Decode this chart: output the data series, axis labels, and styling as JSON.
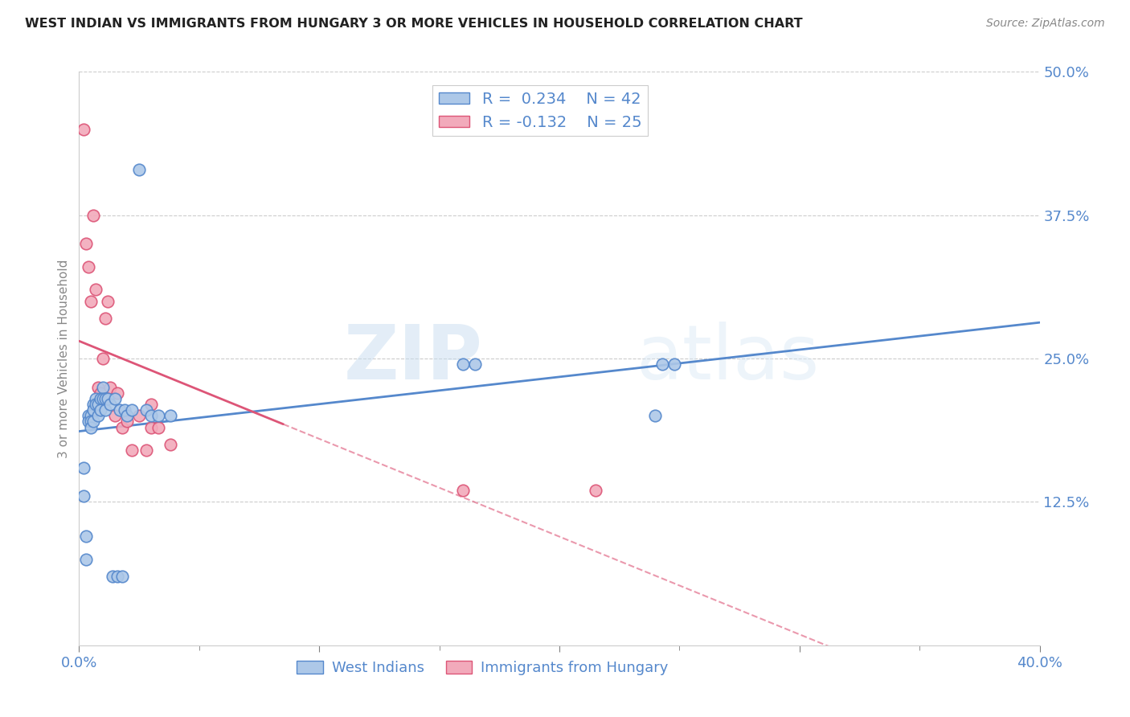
{
  "title": "WEST INDIAN VS IMMIGRANTS FROM HUNGARY 3 OR MORE VEHICLES IN HOUSEHOLD CORRELATION CHART",
  "source": "Source: ZipAtlas.com",
  "xlabel_blue": "West Indians",
  "xlabel_pink": "Immigrants from Hungary",
  "ylabel": "3 or more Vehicles in Household",
  "x_min": 0.0,
  "x_max": 0.4,
  "y_min": 0.0,
  "y_max": 0.5,
  "y_ticks_right": [
    0.125,
    0.25,
    0.375,
    0.5
  ],
  "y_tick_labels_right": [
    "12.5%",
    "25.0%",
    "37.5%",
    "50.0%"
  ],
  "legend_blue_R": "0.234",
  "legend_blue_N": "42",
  "legend_pink_R": "-0.132",
  "legend_pink_N": "25",
  "blue_color": "#adc8e8",
  "pink_color": "#f2aabb",
  "blue_line_color": "#5588cc",
  "pink_line_color": "#dd5577",
  "blue_x": [
    0.002,
    0.002,
    0.003,
    0.003,
    0.004,
    0.004,
    0.005,
    0.005,
    0.005,
    0.006,
    0.006,
    0.006,
    0.007,
    0.007,
    0.008,
    0.008,
    0.009,
    0.009,
    0.01,
    0.01,
    0.011,
    0.011,
    0.012,
    0.013,
    0.014,
    0.015,
    0.016,
    0.017,
    0.018,
    0.019,
    0.02,
    0.022,
    0.025,
    0.028,
    0.03,
    0.033,
    0.038,
    0.16,
    0.165,
    0.24,
    0.243,
    0.248
  ],
  "blue_y": [
    0.155,
    0.13,
    0.095,
    0.075,
    0.2,
    0.195,
    0.2,
    0.195,
    0.19,
    0.21,
    0.205,
    0.195,
    0.215,
    0.21,
    0.21,
    0.2,
    0.215,
    0.205,
    0.225,
    0.215,
    0.215,
    0.205,
    0.215,
    0.21,
    0.06,
    0.215,
    0.06,
    0.205,
    0.06,
    0.205,
    0.2,
    0.205,
    0.415,
    0.205,
    0.2,
    0.2,
    0.2,
    0.245,
    0.245,
    0.2,
    0.245,
    0.245
  ],
  "pink_x": [
    0.002,
    0.003,
    0.004,
    0.005,
    0.006,
    0.007,
    0.008,
    0.009,
    0.01,
    0.011,
    0.012,
    0.013,
    0.015,
    0.016,
    0.018,
    0.02,
    0.022,
    0.025,
    0.028,
    0.03,
    0.033,
    0.038,
    0.16,
    0.215,
    0.03
  ],
  "pink_y": [
    0.45,
    0.35,
    0.33,
    0.3,
    0.375,
    0.31,
    0.225,
    0.22,
    0.25,
    0.285,
    0.3,
    0.225,
    0.2,
    0.22,
    0.19,
    0.195,
    0.17,
    0.2,
    0.17,
    0.19,
    0.19,
    0.175,
    0.135,
    0.135,
    0.21
  ],
  "watermark_zip": "ZIP",
  "watermark_atlas": "atlas"
}
